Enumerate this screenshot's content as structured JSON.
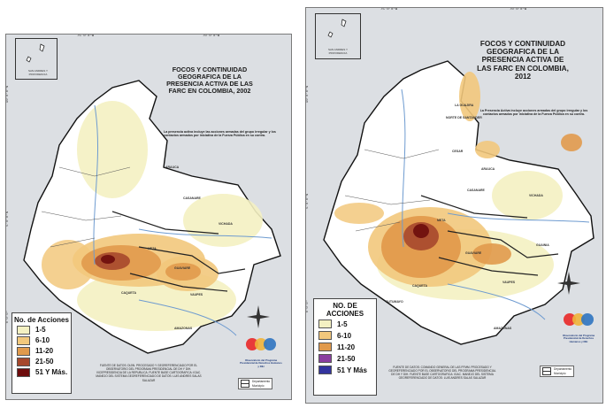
{
  "colors": {
    "background": "#dcdfe3",
    "c1_5": "#f4f1c2",
    "c6_10": "#f2c87c",
    "c11_20": "#e19a4c",
    "c21_50_2002": "#a6482c",
    "c51_2002": "#6d0c0c",
    "c21_50_2012": "#8b3fa0",
    "c51_2012": "#33349e",
    "river": "#6e9bd0",
    "department_border": "#111111"
  },
  "ticks": {
    "lon": [
      "75°0'0\"W",
      "70°0'0\"W"
    ],
    "lat": [
      "10°0'0\"N",
      "5°0'0\"N",
      "0°0'0\""
    ]
  },
  "maps": [
    {
      "title": "FOCOS Y CONTINUIDAD GEOGRAFICA DE LA PRESENCIA ACTIVA DE LAS FARC EN COLOMBIA, 2002",
      "note": "La presencia activa incluye las acciones armadas del grupo irregular y los contactos armados por iniciativa de la Fuerza Pública en su contra.",
      "inset_label": "SAN ANDRES Y PROVIDENCIA",
      "legend": {
        "title": "No. de Acciones",
        "items": [
          {
            "label": "1-5",
            "color": "#f4f1c2"
          },
          {
            "label": "6-10",
            "color": "#f2c87c"
          },
          {
            "label": "11-20",
            "color": "#e19a4c"
          },
          {
            "label": "21-50",
            "color": "#a6482c"
          },
          {
            "label": "51 Y Más.",
            "color": "#6d0c0c"
          }
        ]
      },
      "source": "FUENTE DE DATOS: DIJIN. PROCESADO Y GEOREFERENCIADO POR EL OBSERVATORIO DEL PROGRAMA PRESIDENCIAL DE DH Y DIH. VICEPRESIDENCIA DE LA REPUBLICA. FUENTE BASE CARTOGRAFICA: IGAC. MANEJO DEL SISTEMA GEOREFERENCIADO DE DATOS: LUIS ANDRES SALAS SALAZAR",
      "map_legend": [
        "Departamento",
        "Municipio"
      ],
      "logo_text": "Observatorio del Programa Presidencial de Derechos Humanos y DIH",
      "departments": [
        "CASANARE",
        "META",
        "VICHADA",
        "GUAVIARE",
        "CAQUETA",
        "VAUPES",
        "AMAZONAS",
        "ARAUCA"
      ]
    },
    {
      "title": "FOCOS Y CONTINUIDAD GEOGRAFICA DE LA PRESENCIA ACTIVA DE LAS FARC EN COLOMBIA, 2012",
      "note": "La Presencia Activa incluye acciones armadas del grupo irregular y los contactos armados por iniciativa de la Fuerza Pública en su contra.",
      "inset_label": "SAN ANDRES Y PROVIDENCIA",
      "legend": {
        "title": "NO. DE ACCIONES",
        "items": [
          {
            "label": "1-5",
            "color": "#f4f1c2"
          },
          {
            "label": "6-10",
            "color": "#f2c87c"
          },
          {
            "label": "11-20",
            "color": "#e19a4c"
          },
          {
            "label": "21-50",
            "color": "#8b3fa0"
          },
          {
            "label": "51 Y Más",
            "color": "#33349e"
          }
        ]
      },
      "source": "FUENTE DE DATOS: COMANDO GENERAL DE LAS FFMM. PROCESADO Y GEOREFERENCIADO POR EL OBSERVATORIO DEL PROGRAMA PRESIDENCIAL DE DH Y DIH. FUENTE BASE CARTOGRAFICA: IGAC. MANEJO DEL SISTEMA GEOREFERENCIADO DE DATOS: LUIS ANDRES SALAS SALAZAR",
      "map_legend": [
        "Departamento",
        "Municipio"
      ],
      "logo_text": "Observatorio del Programa Presidencial de Derechos Humanos y DIH",
      "departments": [
        "LA GUAJIRA",
        "CESAR",
        "ARAUCA",
        "CASANARE",
        "VICHADA",
        "META",
        "GUAINIA",
        "GUAVIARE",
        "VAUPES",
        "AMAZONAS",
        "CAQUETA",
        "PUTUMAYO",
        "NORTE DE SANTANDER"
      ]
    }
  ]
}
